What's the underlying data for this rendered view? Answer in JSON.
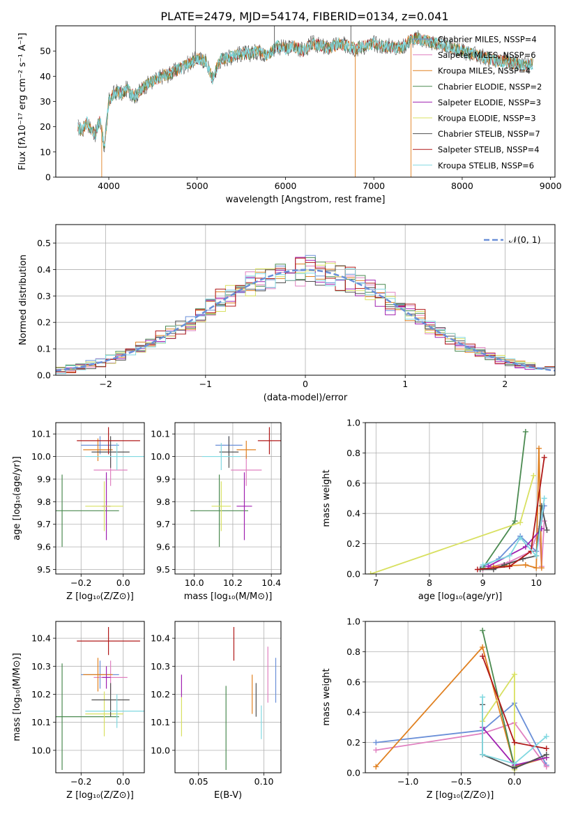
{
  "title": "PLATE=2479, MJD=54174, FIBERID=0134, z=0.041",
  "colors": {
    "chabrier_miles": "#6a8fd8",
    "salpeter_miles": "#e080c0",
    "kroupa_miles": "#e08020",
    "chabrier_elodie": "#4a8a50",
    "salpeter_elodie": "#a020b0",
    "kroupa_elodie": "#d8e060",
    "chabrier_stelib": "#505050",
    "salpeter_stelib": "#b01818",
    "kroupa_stelib": "#80d8e0",
    "gauss": "#6a8fd8",
    "grid": "#b0b0b0"
  },
  "chart_data": [
    {
      "type": "line",
      "xlabel": "wavelength [Angstrom, rest frame]",
      "ylabel": "Flux [fλ10⁻¹⁷ erg cm⁻² s⁻¹ A⁻¹]",
      "xlim": [
        3400,
        9050
      ],
      "ylim": [
        0,
        60
      ],
      "xticks": [
        "4000",
        "5000",
        "6000",
        "7000",
        "8000",
        "9000"
      ],
      "yticks": [
        "0",
        "10",
        "20",
        "30",
        "40",
        "50"
      ],
      "grid": false,
      "legend": "top-right",
      "legend_entries": [
        "Chabrier MILES, N_SSP=4",
        "Salpeter MILES, N_SSP=6",
        "Kroupa MILES, N_SSP=4",
        "Chabrier ELODIE, N_SSP=2",
        "Salpeter ELODIE, N_SSP=3",
        "Kroupa ELODIE, N_SSP=3",
        "Chabrier STELIB, N_SSP=7",
        "Salpeter STELIB, N_SSP=4",
        "Kroupa STELIB, N_SSP=6"
      ],
      "spectrum": {
        "x": [
          3650,
          3700,
          3750,
          3800,
          3850,
          3900,
          3950,
          4000,
          4050,
          4100,
          4150,
          4200,
          4300,
          4400,
          4500,
          4600,
          4700,
          4800,
          4900,
          5000,
          5100,
          5175,
          5250,
          5300,
          5400,
          5500,
          5600,
          5700,
          5800,
          5900,
          6000,
          6100,
          6200,
          6300,
          6400,
          6500,
          6600,
          6700,
          6800,
          6900,
          7000,
          7100,
          7200,
          7300,
          7400,
          7500,
          7600,
          7700,
          7800,
          7900,
          8000,
          8100,
          8200,
          8300,
          8400,
          8500,
          8600,
          8700,
          8800
        ],
        "y": [
          20,
          18,
          22,
          19,
          17,
          23,
          12,
          30,
          33,
          34,
          33,
          35,
          32,
          36,
          38,
          40,
          41,
          43,
          45,
          47,
          46,
          39,
          46,
          47,
          48,
          49,
          49,
          50,
          48,
          52,
          51,
          52,
          50,
          53,
          52,
          51,
          53,
          52,
          51,
          52,
          53,
          52,
          52,
          51,
          54,
          55,
          54,
          53,
          52,
          51,
          50,
          49,
          48,
          47,
          46,
          46,
          45,
          44,
          45
        ]
      }
    },
    {
      "type": "bar",
      "xlabel": "(data-model)/error",
      "ylabel": "Normed distribution",
      "xlim": [
        -2.5,
        2.5
      ],
      "ylim": [
        0,
        0.57
      ],
      "xticks": [
        "−2",
        "−1",
        "0",
        "1",
        "2"
      ],
      "yticks": [
        "0.0",
        "0.1",
        "0.2",
        "0.3",
        "0.4",
        "0.5"
      ],
      "grid": true,
      "legend": "top-right",
      "legend_entries": [
        "𝒩(0, 1)"
      ],
      "bin_width": 0.1,
      "bin_start": -2.5
    },
    {
      "type": "scatter",
      "xlabel": "Z [log₁₀(Z/Z⊙)]",
      "ylabel": "age  [log₁₀(age/yr)]",
      "xlim": [
        -0.32,
        0.1
      ],
      "ylim": [
        9.48,
        10.15
      ],
      "xticks": [
        "−0.2",
        "0.0"
      ],
      "yticks": [
        "9.5",
        "9.6",
        "9.7",
        "9.8",
        "9.9",
        "10.0",
        "10.1"
      ],
      "grid": true,
      "series": [
        {
          "x": -0.11,
          "y": 10.05,
          "xerr": 0.09,
          "yerr": 0.04
        },
        {
          "x": -0.06,
          "y": 9.94,
          "xerr": 0.08,
          "yerr": 0.07
        },
        {
          "x": -0.12,
          "y": 10.03,
          "xerr": 0.07,
          "yerr": 0.05
        },
        {
          "x": -0.29,
          "y": 9.76,
          "xerr": 0.27,
          "yerr": 0.16
        },
        {
          "x": -0.08,
          "y": 9.78,
          "xerr": 0.02,
          "yerr": 0.15
        },
        {
          "x": -0.09,
          "y": 9.78,
          "xerr": 0.09,
          "yerr": 0.11
        },
        {
          "x": -0.06,
          "y": 10.02,
          "xerr": 0.09,
          "yerr": 0.07
        },
        {
          "x": -0.07,
          "y": 10.07,
          "xerr": 0.15,
          "yerr": 0.06
        },
        {
          "x": -0.03,
          "y": 10.0,
          "xerr": 0.15,
          "yerr": 0.06
        }
      ]
    },
    {
      "type": "scatter",
      "xlabel": "mass [log₁₀(M/M⊙)]",
      "ylabel": "",
      "xlim": [
        9.9,
        10.45
      ],
      "ylim": [
        9.48,
        10.15
      ],
      "xticks": [
        "10.0",
        "10.2",
        "10.4"
      ],
      "yticks": [
        "9.5",
        "9.6",
        "9.7",
        "9.8",
        "9.9",
        "10.0",
        "10.1"
      ],
      "grid": true,
      "series": [
        {
          "x": 10.18,
          "y": 10.05,
          "xerr": 0.07,
          "yerr": 0.04
        },
        {
          "x": 10.27,
          "y": 9.94,
          "xerr": 0.08,
          "yerr": 0.07
        },
        {
          "x": 10.27,
          "y": 10.03,
          "xerr": 0.05,
          "yerr": 0.04
        },
        {
          "x": 10.13,
          "y": 9.76,
          "xerr": 0.15,
          "yerr": 0.16
        },
        {
          "x": 10.26,
          "y": 9.78,
          "xerr": 0.04,
          "yerr": 0.15
        },
        {
          "x": 10.14,
          "y": 9.78,
          "xerr": 0.05,
          "yerr": 0.11
        },
        {
          "x": 10.18,
          "y": 10.02,
          "xerr": 0.05,
          "yerr": 0.07
        },
        {
          "x": 10.39,
          "y": 10.07,
          "xerr": 0.06,
          "yerr": 0.06
        },
        {
          "x": 10.14,
          "y": 10.0,
          "xerr": 0.1,
          "yerr": 0.06
        }
      ]
    },
    {
      "type": "line",
      "xlabel": "age  [log₁₀(age/yr)]",
      "ylabel": "mass weight",
      "xlim": [
        6.8,
        10.35
      ],
      "ylim": [
        0,
        1.0
      ],
      "xticks": [
        "7",
        "8",
        "9",
        "10"
      ],
      "yticks": [
        "0.0",
        "0.2",
        "0.4",
        "0.6",
        "0.8",
        "1.0"
      ],
      "grid": true,
      "series": [
        {
          "x": [
            9.0,
            9.3,
            9.7,
            10.0,
            10.15
          ],
          "y": [
            0.05,
            0.1,
            0.25,
            0.15,
            0.45
          ]
        },
        {
          "x": [
            9.0,
            9.5,
            9.9,
            10.05,
            10.1,
            10.15
          ],
          "y": [
            0.03,
            0.08,
            0.15,
            0.3,
            0.05,
            0.35
          ]
        },
        {
          "x": [
            9.2,
            9.8,
            10.0,
            10.05,
            10.1
          ],
          "y": [
            0.05,
            0.06,
            0.04,
            0.83,
            0.04
          ]
        },
        {
          "x": [
            9.0,
            9.6,
            9.8
          ],
          "y": [
            0.04,
            0.35,
            0.94
          ]
        },
        {
          "x": [
            9.1,
            9.8,
            10.1
          ],
          "y": [
            0.05,
            0.18,
            0.3
          ]
        },
        {
          "x": [
            6.9,
            9.7,
            9.95
          ],
          "y": [
            0.0,
            0.34,
            0.65
          ]
        },
        {
          "x": [
            8.95,
            9.2,
            9.4,
            9.75,
            10.0,
            10.1,
            10.2
          ],
          "y": [
            0.03,
            0.03,
            0.06,
            0.1,
            0.12,
            0.45,
            0.29
          ]
        },
        {
          "x": [
            8.9,
            9.5,
            9.9,
            10.15
          ],
          "y": [
            0.03,
            0.05,
            0.15,
            0.77
          ]
        },
        {
          "x": [
            9.0,
            9.5,
            9.7,
            10.0,
            10.15
          ],
          "y": [
            0.06,
            0.12,
            0.24,
            0.12,
            0.5
          ]
        }
      ]
    },
    {
      "type": "scatter",
      "xlabel": "Z [log₁₀(Z/Z⊙)]",
      "ylabel": "mass [log₁₀(M/M⊙)]",
      "xlim": [
        -0.32,
        0.1
      ],
      "ylim": [
        9.92,
        10.46
      ],
      "xticks": [
        "−0.2",
        "0.0"
      ],
      "yticks": [
        "10.0",
        "10.1",
        "10.2",
        "10.3",
        "10.4"
      ],
      "grid": true,
      "series": [
        {
          "x": -0.11,
          "y": 10.27,
          "xerr": 0.09,
          "yerr": 0.05
        },
        {
          "x": -0.06,
          "y": 10.26,
          "xerr": 0.08,
          "yerr": 0.06
        },
        {
          "x": -0.12,
          "y": 10.27,
          "xerr": 0.07,
          "yerr": 0.06
        },
        {
          "x": -0.29,
          "y": 10.12,
          "xerr": 0.27,
          "yerr": 0.19
        },
        {
          "x": -0.08,
          "y": 10.26,
          "xerr": 0.02,
          "yerr": 0.04
        },
        {
          "x": -0.09,
          "y": 10.13,
          "xerr": 0.09,
          "yerr": 0.08
        },
        {
          "x": -0.06,
          "y": 10.18,
          "xerr": 0.09,
          "yerr": 0.06
        },
        {
          "x": -0.07,
          "y": 10.39,
          "xerr": 0.15,
          "yerr": 0.05
        },
        {
          "x": -0.03,
          "y": 10.14,
          "xerr": 0.15,
          "yerr": 0.06
        }
      ]
    },
    {
      "type": "scatter",
      "xlabel": "E(B-V)",
      "ylabel": "",
      "xlim": [
        0.032,
        0.113
      ],
      "ylim": [
        9.92,
        10.46
      ],
      "xticks": [
        "0.05",
        "0.10"
      ],
      "yticks": [
        "10.0",
        "10.1",
        "10.2",
        "10.3",
        "10.4"
      ],
      "grid": true,
      "series": [
        {
          "x": 0.109,
          "y": 10.25,
          "yerr": 0.08
        },
        {
          "x": 0.103,
          "y": 10.27,
          "yerr": 0.1
        },
        {
          "x": 0.091,
          "y": 10.2,
          "yerr": 0.07
        },
        {
          "x": 0.071,
          "y": 10.08,
          "yerr": 0.15
        },
        {
          "x": 0.037,
          "y": 10.23,
          "yerr": 0.04
        },
        {
          "x": 0.037,
          "y": 10.12,
          "yerr": 0.07
        },
        {
          "x": 0.094,
          "y": 10.18,
          "yerr": 0.06
        },
        {
          "x": 0.077,
          "y": 10.38,
          "yerr": 0.06
        },
        {
          "x": 0.098,
          "y": 10.1,
          "yerr": 0.06
        }
      ]
    },
    {
      "type": "line",
      "xlabel": "Z [log₁₀(Z/Z⊙)]",
      "ylabel": "mass weight",
      "xlim": [
        -1.4,
        0.38
      ],
      "ylim": [
        0,
        1.0
      ],
      "xticks": [
        "−1.0",
        "−0.5",
        "0.0"
      ],
      "yticks": [
        "0.0",
        "0.2",
        "0.4",
        "0.6",
        "0.8",
        "1.0"
      ],
      "grid": true,
      "series": [
        {
          "x": [
            -1.3,
            -0.3,
            0.0,
            0.3
          ],
          "y": [
            0.2,
            0.28,
            0.46,
            0.05
          ]
        },
        {
          "x": [
            -1.3,
            -0.3,
            0.0,
            0.3
          ],
          "y": [
            0.15,
            0.26,
            0.33,
            0.04
          ]
        },
        {
          "x": [
            -1.3,
            -0.3,
            0.0,
            0.3
          ],
          "y": [
            0.04,
            0.83,
            0.04,
            0.1
          ]
        },
        {
          "x": [
            -0.3,
            0.0
          ],
          "y": [
            0.94,
            0.04
          ]
        },
        {
          "x": [
            -0.3,
            0.0,
            0.3
          ],
          "y": [
            0.3,
            0.05,
            0.1
          ]
        },
        {
          "x": [
            -0.3,
            0.0,
            0.0
          ],
          "y": [
            0.34,
            0.65,
            0.02
          ]
        },
        {
          "x": [
            -0.3,
            -0.3,
            0.0,
            0.3
          ],
          "y": [
            0.45,
            0.12,
            0.03,
            0.12
          ]
        },
        {
          "x": [
            -0.3,
            0.0,
            0.3
          ],
          "y": [
            0.77,
            0.2,
            0.16
          ]
        },
        {
          "x": [
            -0.3,
            -0.3,
            0.0,
            0.3
          ],
          "y": [
            0.5,
            0.12,
            0.06,
            0.24
          ]
        }
      ]
    }
  ]
}
